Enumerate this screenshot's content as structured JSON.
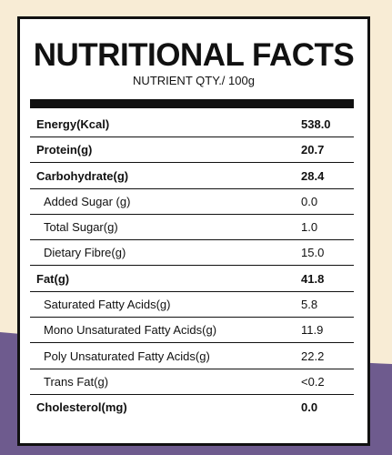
{
  "title": "NUTRITIONAL FACTS",
  "subtitle": "NUTRIENT QTY./ 100g",
  "rows": [
    {
      "label": "Energy(Kcal)",
      "value": "538.0"
    },
    {
      "label": "Protein(g)",
      "value": "20.7"
    },
    {
      "label": "Carbohydrate(g)",
      "value": "28.4"
    },
    {
      "label": "Added Sugar (g)",
      "value": "0.0"
    },
    {
      "label": "Total Sugar(g)",
      "value": "1.0"
    },
    {
      "label": "Dietary Fibre(g)",
      "value": "15.0"
    },
    {
      "label": "Fat(g)",
      "value": "41.8"
    },
    {
      "label": "Saturated Fatty Acids(g)",
      "value": "5.8"
    },
    {
      "label": "Mono Unsaturated Fatty Acids(g)",
      "value": "11.9"
    },
    {
      "label": "Poly Unsaturated Fatty Acids(g)",
      "value": "22.2"
    },
    {
      "label": "Trans Fat(g)",
      "value": "<0.2"
    },
    {
      "label": "Cholesterol(mg)",
      "value": "0.0"
    }
  ],
  "colors": {
    "background_cream": "#f8ecd5",
    "background_purple": "#6e5b8e",
    "panel": "#ffffff",
    "ink": "#111111"
  }
}
